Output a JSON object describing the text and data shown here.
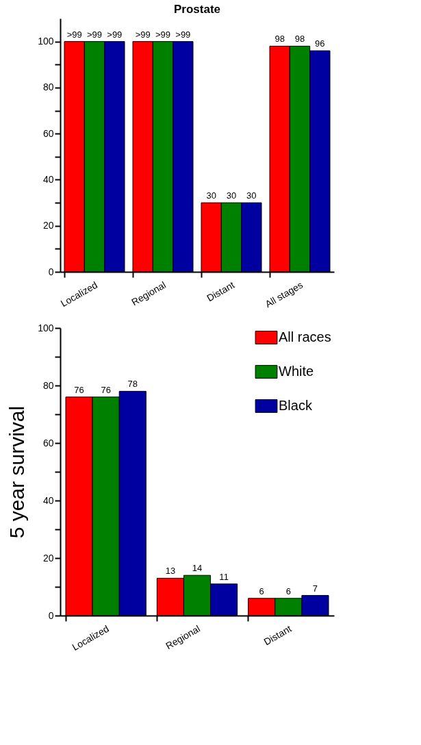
{
  "chart_data": [
    {
      "type": "bar",
      "title": "Prostate",
      "categories": [
        "Localized",
        "Regional",
        "Distant",
        "All stages"
      ],
      "series": [
        {
          "color": "#ff0000",
          "values": [
            100,
            100,
            30,
            98
          ],
          "value_labels": [
            ">99",
            ">99",
            "30",
            "98"
          ]
        },
        {
          "color": "#008000",
          "values": [
            100,
            100,
            30,
            98
          ],
          "value_labels": [
            ">99",
            ">99",
            "30",
            "98"
          ]
        },
        {
          "color": "#0000a0",
          "values": [
            100,
            100,
            30,
            96
          ],
          "value_labels": [
            ">99",
            ">99",
            "30",
            "96"
          ]
        }
      ],
      "ylim": [
        0,
        110
      ],
      "yticks": [
        0,
        {
          "value": 10,
          "label": null
        },
        20,
        {
          "value": 30,
          "label": null
        },
        40,
        {
          "value": 50,
          "label": null
        },
        60,
        {
          "value": 70,
          "label": null
        },
        80,
        {
          "value": 90,
          "label": null
        },
        100
      ],
      "grid": false,
      "legend": false
    },
    {
      "type": "bar",
      "ylabel": "5 year survival",
      "categories": [
        "Localized",
        "Regional",
        "Distant"
      ],
      "series": [
        {
          "name": "All races",
          "color": "#ff0000",
          "values": [
            76,
            13,
            6
          ]
        },
        {
          "name": "White",
          "color": "#008000",
          "values": [
            76,
            14,
            6
          ]
        },
        {
          "name": "Black",
          "color": "#0000a0",
          "values": [
            78,
            11,
            7
          ]
        }
      ],
      "data_labels": true,
      "ylim": [
        0,
        100
      ],
      "yticks": [
        0,
        {
          "value": 10,
          "label": null
        },
        20,
        {
          "value": 30,
          "label": null
        },
        40,
        {
          "value": 50,
          "label": null
        },
        60,
        {
          "value": 70,
          "label": null
        },
        80,
        {
          "value": 90,
          "label": null
        },
        100
      ],
      "grid": false,
      "legend": "top right"
    }
  ]
}
